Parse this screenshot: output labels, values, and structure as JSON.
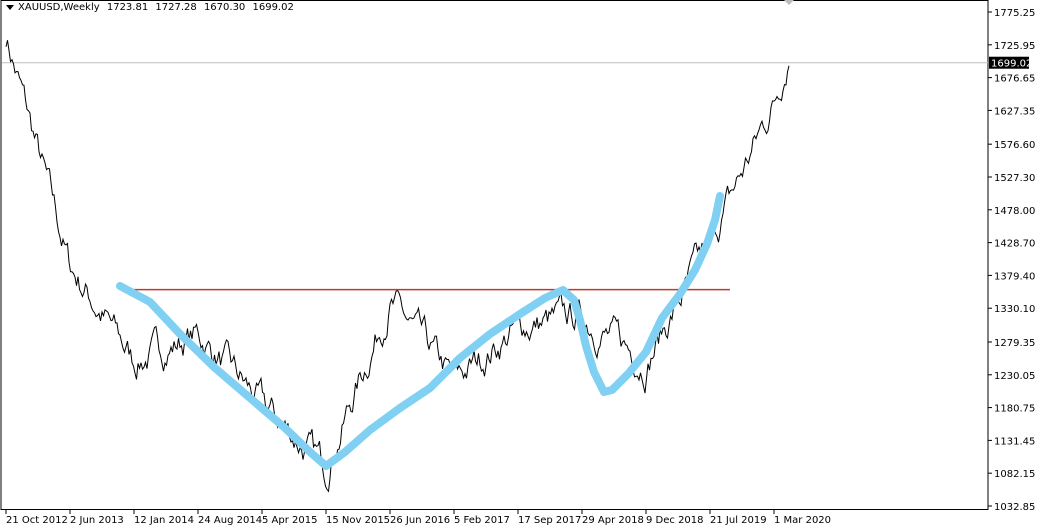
{
  "header": {
    "symbol": "XAUUSD,Weekly",
    "open": "1723.81",
    "high": "1727.28",
    "low": "1670.30",
    "close": "1699.02"
  },
  "current_price_label": "1699.02",
  "colors": {
    "price_line": "#000000",
    "resistance_line": "#c0392b",
    "drawn_curve": "#7fd0f2",
    "current_price_line": "#c0c0c0",
    "border": "#000000"
  },
  "chart_data": {
    "type": "line",
    "title": "",
    "xlabel": "",
    "ylabel": "",
    "x_tick_labels": [
      "21 Oct 2012",
      "2 Jun 2013",
      "12 Jan 2014",
      "24 Aug 2014",
      "5 Apr 2015",
      "15 Nov 2015",
      "26 Jun 2016",
      "5 Feb 2017",
      "17 Sep 2017",
      "29 Apr 2018",
      "9 Dec 2018",
      "21 Jul 2019",
      "1 Mar 2020"
    ],
    "y_tick_labels": [
      "1775.25",
      "1725.95",
      "1676.65",
      "1627.35",
      "1576.60",
      "1527.30",
      "1478.00",
      "1428.70",
      "1379.40",
      "1330.10",
      "1279.35",
      "1230.05",
      "1180.75",
      "1131.45",
      "1082.15",
      "1032.85"
    ],
    "ylim": [
      1020,
      1790
    ],
    "grid": false,
    "current_price": 1699.02,
    "series": [
      {
        "x": [
          "21 Oct 2012",
          "2 Jun 2013",
          "12 Jan 2014",
          "24 Aug 2014",
          "5 Apr 2015",
          "15 Nov 2015",
          "26 Jun 2016",
          "5 Feb 2017",
          "17 Sep 2017",
          "29 Apr 2018",
          "9 Dec 2018",
          "21 Jul 2019",
          "1 Mar 2020"
        ],
        "values": [
          1740,
          1392,
          1250,
          1290,
          1185,
          1090,
          1340,
          1220,
          1300,
          1318,
          1248,
          1427,
          1640
        ]
      }
    ],
    "annotations": [
      {
        "type": "horizontal_line",
        "label": "resistance",
        "value": 1358,
        "x_start": "12 Jan 2014",
        "x_end": "21 Jul 2019"
      },
      {
        "type": "freehand_curve",
        "label": "drawn cup-and-handle"
      }
    ]
  }
}
